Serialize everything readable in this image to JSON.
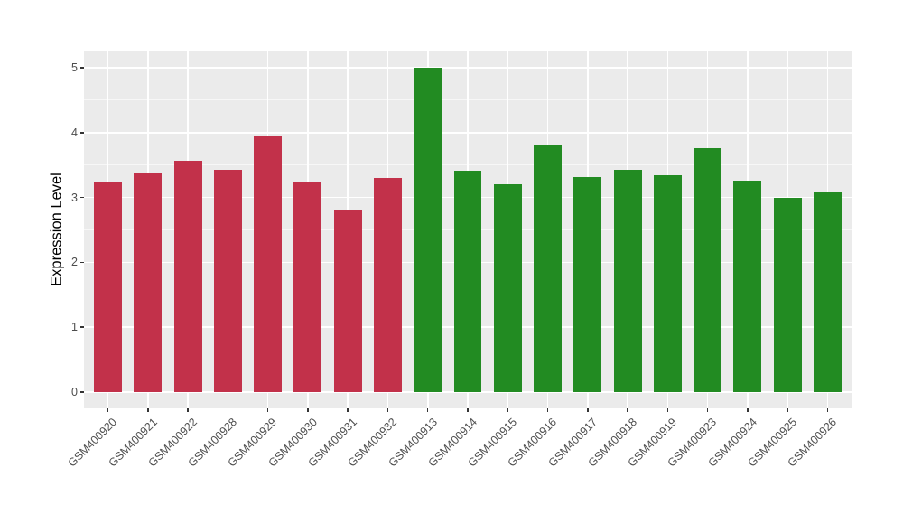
{
  "chart_data": {
    "type": "bar",
    "title": "",
    "xlabel": "",
    "ylabel": "Expression Level",
    "ylim": [
      0,
      5
    ],
    "y_ticks": [
      0,
      1,
      2,
      3,
      4,
      5
    ],
    "legend": "none",
    "grid": "white major and minor horizontal gridlines, white vertical gridline per category, gray panel",
    "categories": [
      "GSM400920",
      "GSM400921",
      "GSM400922",
      "GSM400928",
      "GSM400929",
      "GSM400930",
      "GSM400931",
      "GSM400932",
      "GSM400913",
      "GSM400914",
      "GSM400915",
      "GSM400916",
      "GSM400917",
      "GSM400918",
      "GSM400919",
      "GSM400923",
      "GSM400924",
      "GSM400925",
      "GSM400926"
    ],
    "values": [
      3.24,
      3.38,
      3.57,
      3.43,
      3.94,
      3.23,
      2.82,
      3.3,
      5.0,
      3.41,
      3.21,
      3.82,
      3.32,
      3.42,
      3.34,
      3.76,
      3.26,
      3.0,
      3.08
    ],
    "bar_groups": [
      "red",
      "red",
      "red",
      "red",
      "red",
      "red",
      "red",
      "red",
      "green",
      "green",
      "green",
      "green",
      "green",
      "green",
      "green",
      "green",
      "green",
      "green",
      "green"
    ],
    "group_colors": {
      "red": "#C2314A",
      "green": "#228B22"
    },
    "panel_background": "#EBEBEB",
    "gridline_color": "#FFFFFF",
    "tick_label_color": "#4D4D4D",
    "axis_title_color": "#000000",
    "tick_mark_color": "#333333"
  }
}
